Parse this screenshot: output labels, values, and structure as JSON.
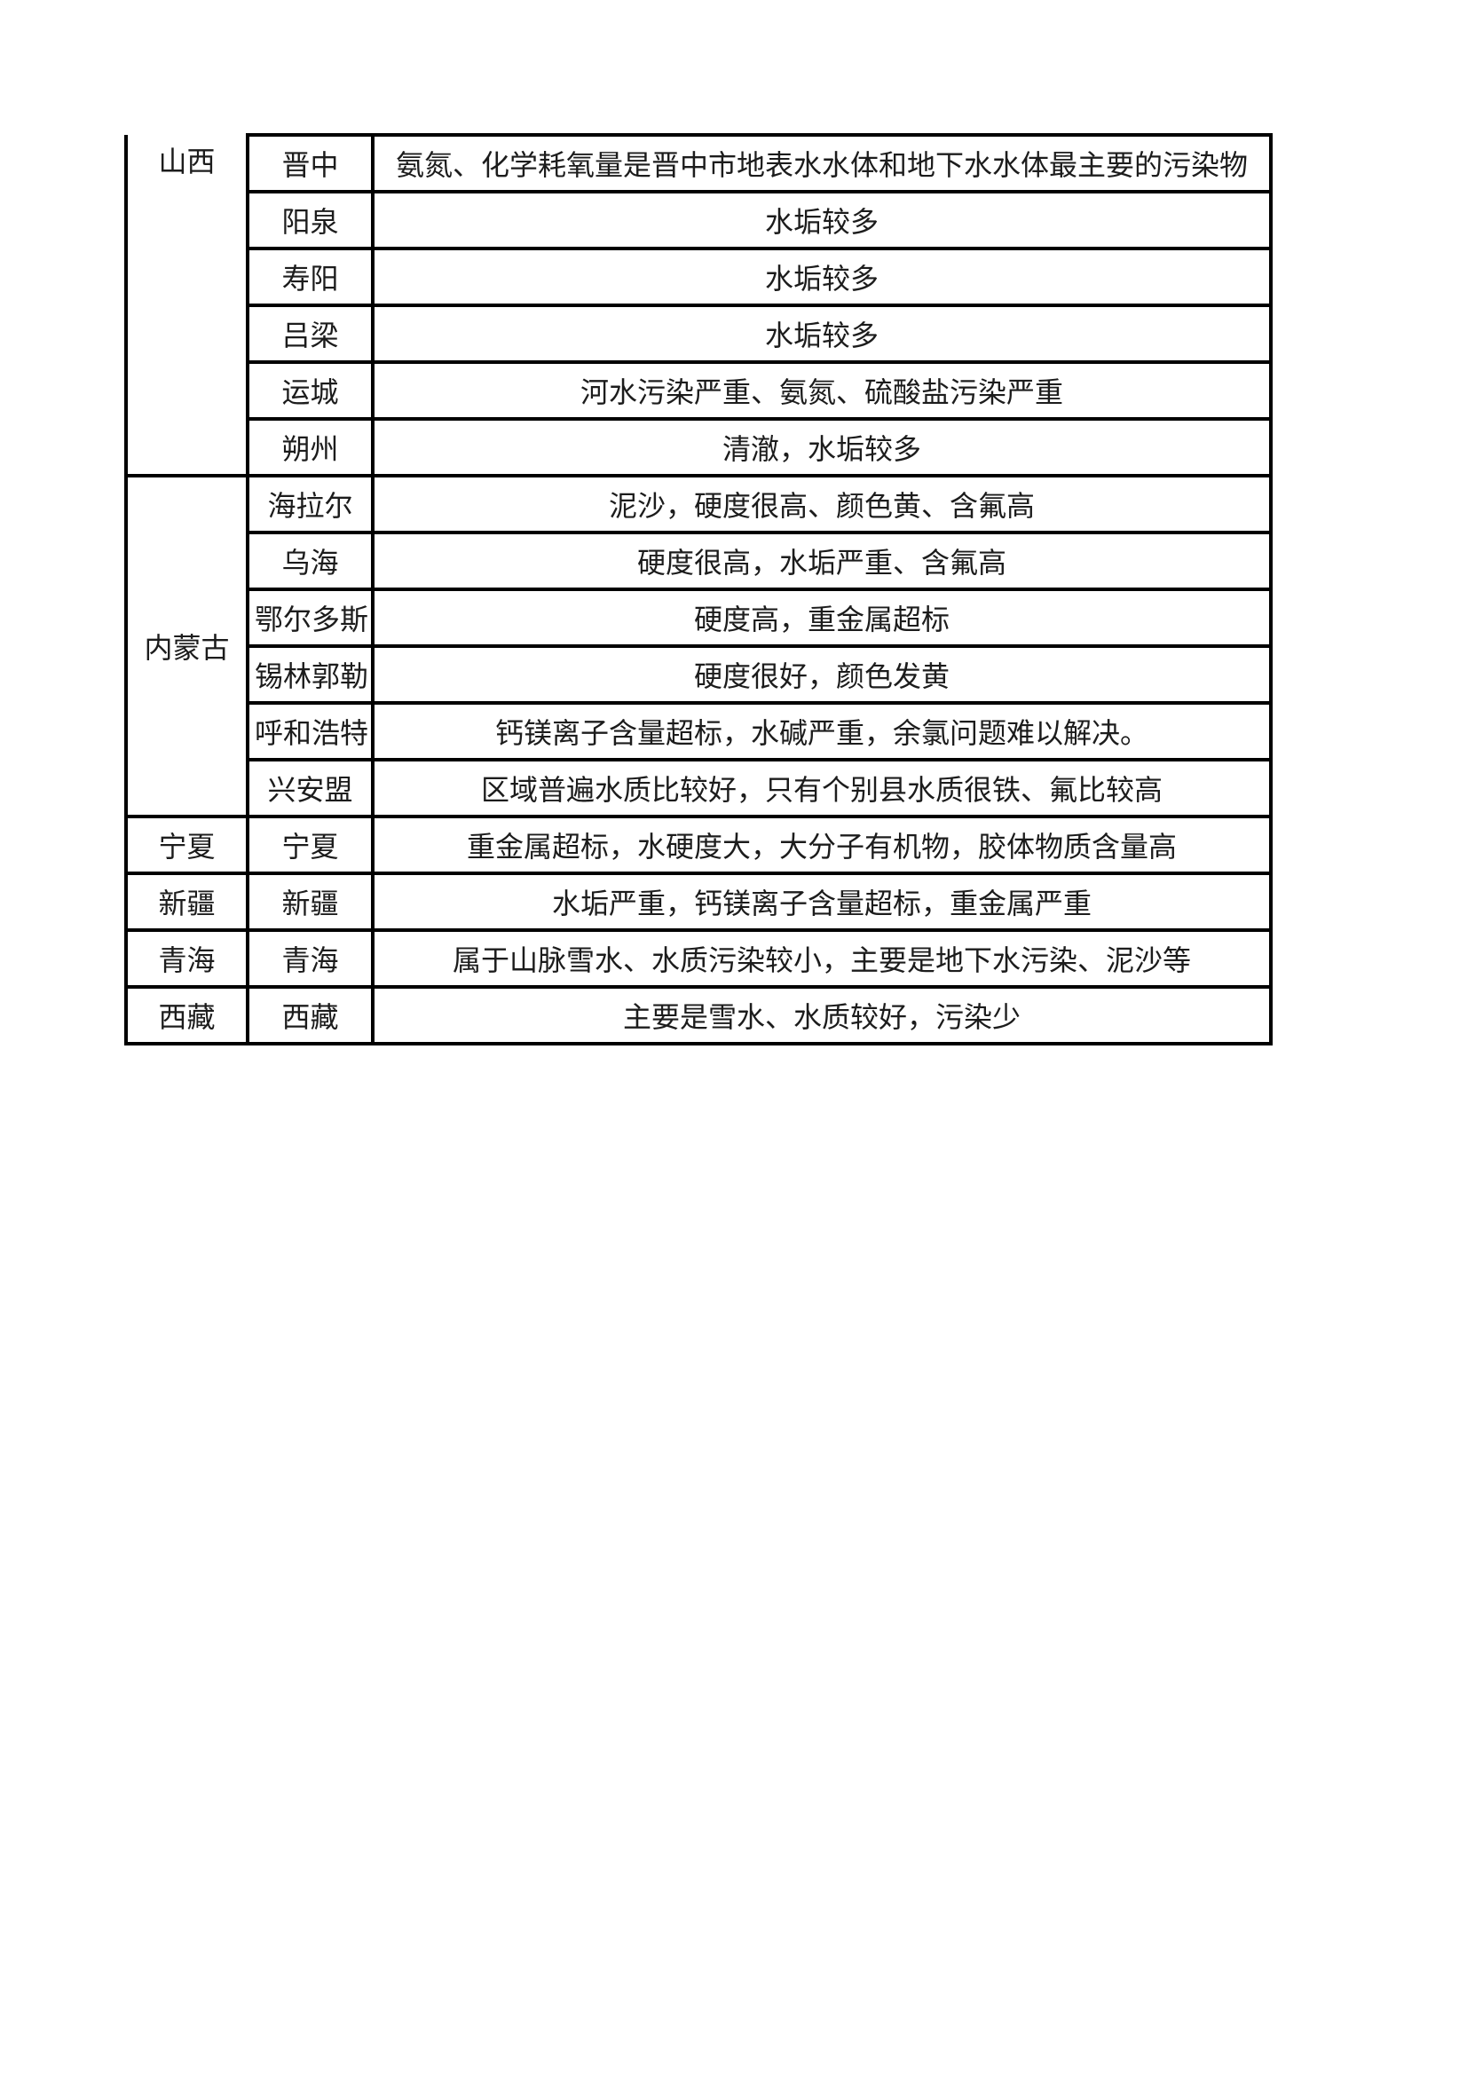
{
  "table": {
    "border_color": "#000000",
    "text_color": "#1c1c1c",
    "groups": [
      {
        "province": "山西",
        "rows": [
          {
            "city": "晋中",
            "description": "氨氮、化学耗氧量是晋中市地表水水体和地下水水体最主要的污染物"
          },
          {
            "city": "阳泉",
            "description": "水垢较多"
          },
          {
            "city": "寿阳",
            "description": "水垢较多"
          },
          {
            "city": "吕梁",
            "description": "水垢较多"
          },
          {
            "city": "运城",
            "description": "河水污染严重、氨氮、硫酸盐污染严重"
          },
          {
            "city": "朔州",
            "description": "清澈，水垢较多"
          }
        ]
      },
      {
        "province": "内蒙古",
        "rows": [
          {
            "city": "海拉尔",
            "description": "泥沙，硬度很高、颜色黄、含氟高"
          },
          {
            "city": "乌海",
            "description": "硬度很高，水垢严重、含氟高"
          },
          {
            "city": "鄂尔多斯",
            "description": "硬度高，重金属超标"
          },
          {
            "city": "锡林郭勒",
            "description": "硬度很好，颜色发黄"
          },
          {
            "city": "呼和浩特",
            "description": "钙镁离子含量超标，水碱严重，余氯问题难以解决。"
          },
          {
            "city": "兴安盟",
            "description": "区域普遍水质比较好，只有个别县水质很铁、氟比较高"
          }
        ]
      },
      {
        "province": "宁夏",
        "rows": [
          {
            "city": "宁夏",
            "description": "重金属超标，水硬度大，大分子有机物，胶体物质含量高"
          }
        ]
      },
      {
        "province": "新疆",
        "rows": [
          {
            "city": "新疆",
            "description": "水垢严重，钙镁离子含量超标，重金属严重"
          }
        ]
      },
      {
        "province": "青海",
        "rows": [
          {
            "city": "青海",
            "description": "属于山脉雪水、水质污染较小，主要是地下水污染、泥沙等"
          }
        ]
      },
      {
        "province": "西藏",
        "rows": [
          {
            "city": "西藏",
            "description": "主要是雪水、水质较好，污染少"
          }
        ]
      }
    ]
  }
}
